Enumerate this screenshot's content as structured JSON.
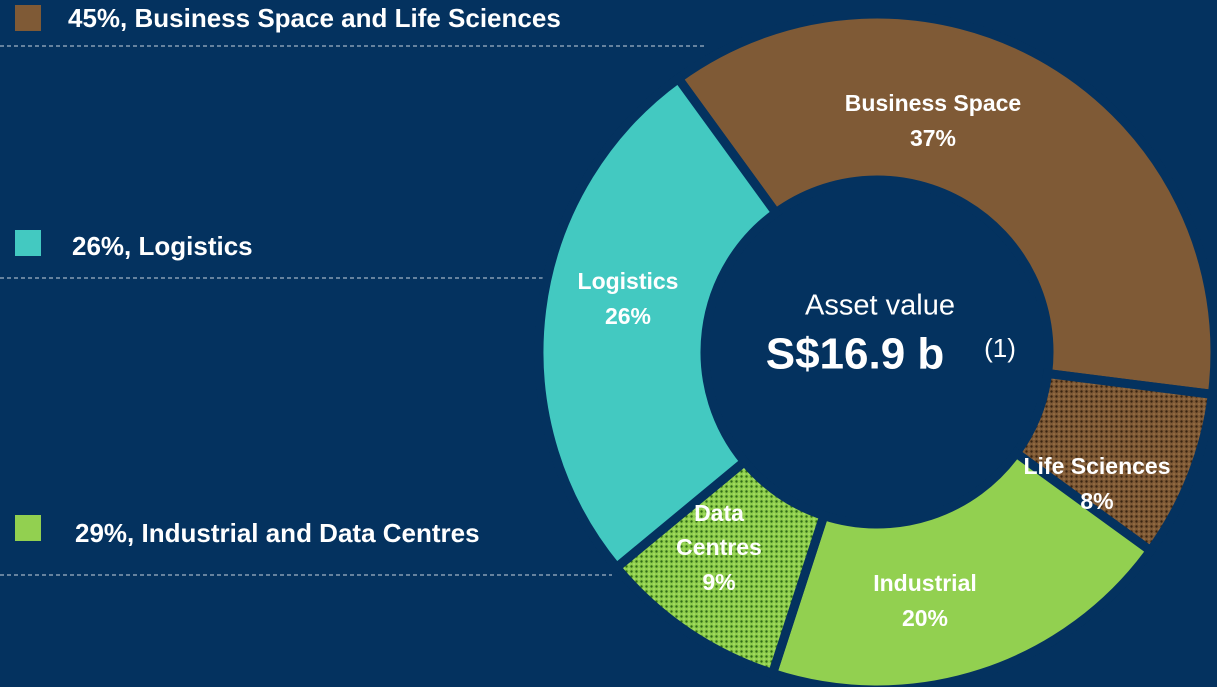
{
  "chart_data": {
    "type": "pie",
    "donut": true,
    "categories": [
      "Business Space",
      "Life Sciences",
      "Industrial",
      "Data Centres",
      "Logistics"
    ],
    "values": [
      37,
      8,
      20,
      9,
      26
    ],
    "value_labels": [
      "37%",
      "8%",
      "20%",
      "9%",
      "26%"
    ],
    "colors": [
      "#7f5a36",
      "#6b4a2c",
      "#92d050",
      "#6fb83a",
      "#43c9c1"
    ],
    "center_text": {
      "title": "Asset value",
      "value": "S$16.9 b",
      "note": "(1)"
    },
    "groups": [
      {
        "label": "45%, Business Space and Life Sciences",
        "color": "#7f5a36"
      },
      {
        "label": "26%, Logistics",
        "color": "#43c9c1"
      },
      {
        "label": "29%, Industrial and Data Centres",
        "color": "#92d050"
      }
    ]
  }
}
